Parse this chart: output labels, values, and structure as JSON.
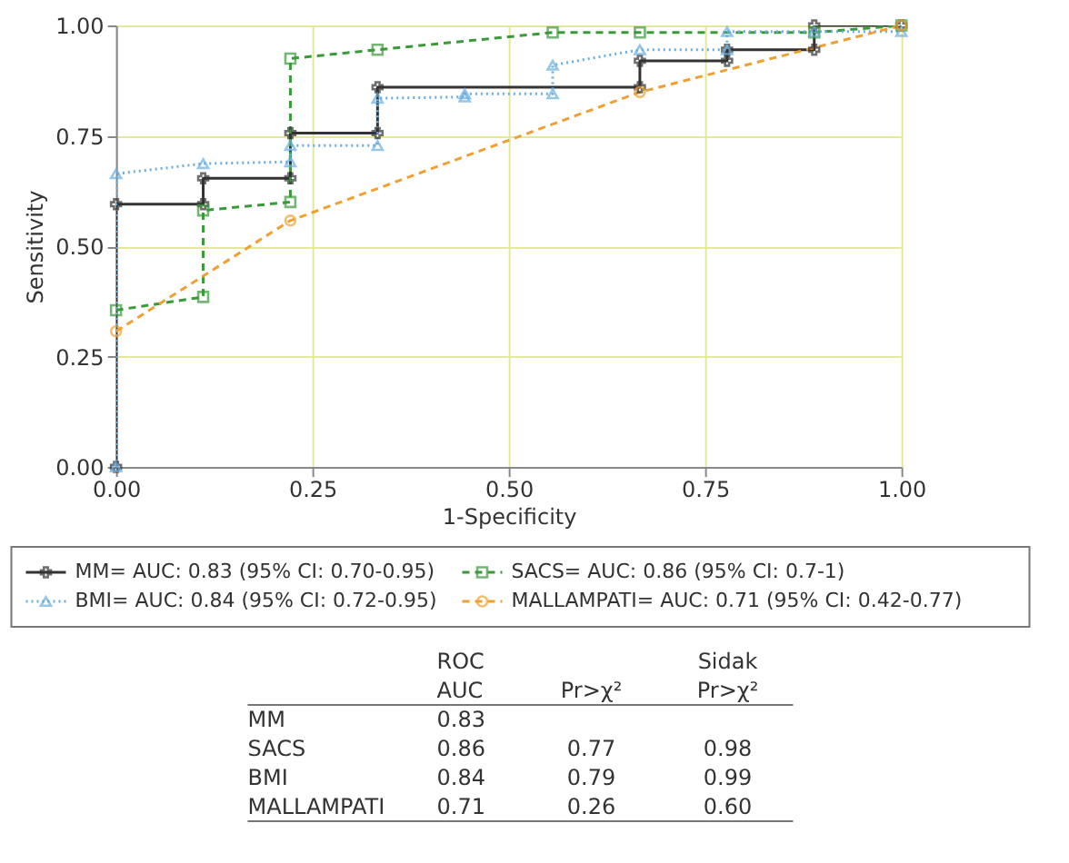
{
  "chart_data": {
    "type": "line",
    "xlabel": "1-Specificity",
    "ylabel": "Sensitivity",
    "xlim": [
      0,
      1
    ],
    "ylim": [
      0,
      1
    ],
    "xticks": [
      {
        "value": 0,
        "label": "0.00"
      },
      {
        "value": 0.25,
        "label": "0.25"
      },
      {
        "value": 0.5,
        "label": "0.50"
      },
      {
        "value": 0.75,
        "label": "0.75"
      },
      {
        "value": 1,
        "label": "1.00"
      }
    ],
    "yticks": [
      {
        "value": 0,
        "label": "0.00"
      },
      {
        "value": 0.25,
        "label": "0.25"
      },
      {
        "value": 0.5,
        "label": "0.50"
      },
      {
        "value": 0.75,
        "label": "0.75"
      },
      {
        "value": 1,
        "label": "1.00"
      }
    ],
    "grid": true,
    "legend": "bottom",
    "series": [
      {
        "name": "MM= AUC: 0.83 (95% CI: 0.70-0.95)",
        "color": "#333333",
        "marker": "cross",
        "line_style": "solid",
        "x": [
          0,
          0,
          0.111,
          0.111,
          0.222,
          0.222,
          0.333,
          0.333,
          0.667,
          0.667,
          0.778,
          0.778,
          0.889,
          0.889,
          1
        ],
        "values": [
          0,
          0.595,
          0.595,
          0.654,
          0.654,
          0.756,
          0.756,
          0.86,
          0.86,
          0.92,
          0.92,
          0.945,
          0.945,
          1.0,
          1.0
        ]
      },
      {
        "name": "SACS= AUC: 0.86 (95% CI: 0.7-1)",
        "color": "#3a9a3a",
        "marker": "square",
        "line_style": "dashed",
        "x": [
          0,
          0.111,
          0.111,
          0.222,
          0.222,
          0.333,
          0.556,
          0.667,
          0.889,
          1
        ],
        "values": [
          0.355,
          0.385,
          0.581,
          0.6,
          0.925,
          0.945,
          0.984,
          0.984,
          0.984,
          1.0
        ]
      },
      {
        "name": "BMI= AUC: 0.84 (95% CI: 0.72-0.95)",
        "color": "#6aaee0",
        "marker": "triangle",
        "line_style": "dotted",
        "x": [
          0,
          0,
          0.111,
          0.222,
          0.222,
          0.333,
          0.333,
          0.444,
          0.444,
          0.556,
          0.556,
          0.667,
          0.778,
          0.778,
          0.889,
          1
        ],
        "values": [
          0,
          0.664,
          0.687,
          0.691,
          0.728,
          0.728,
          0.835,
          0.838,
          0.845,
          0.845,
          0.91,
          0.945,
          0.945,
          0.986,
          0.986,
          0.986
        ]
      },
      {
        "name": "MALLAMPATI= AUC: 0.71 (95% CI: 0.42-0.77)",
        "color": "#f0a030",
        "marker": "circle",
        "line_style": "dashed",
        "x": [
          0,
          0.222,
          0.667,
          1
        ],
        "values": [
          0.307,
          0.558,
          0.849,
          1.0
        ]
      }
    ],
    "annotations": [
      "\tROC\nAUC\tPr>χ²\tSidak\nPr>χ²",
      "MM\t0.83\t\t",
      "SACS\t0.86\t0.77\t0.98",
      "BMI\t0.84\t0.79\t0.99",
      "MALLAMPATI\t0.71\t0.26\t0.60"
    ]
  }
}
